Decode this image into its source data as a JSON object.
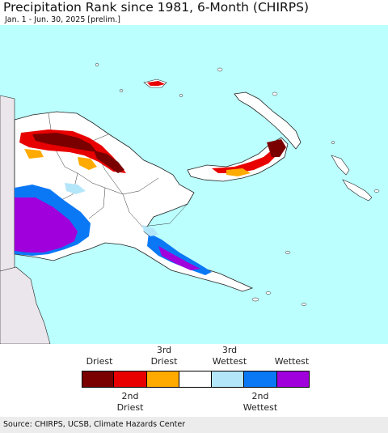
{
  "title": "Precipitation Rank since 1981, 6-Month (CHIRPS)",
  "subtitle": "Jan. 1 - Jun. 30, 2025 [prelim.]",
  "colors": {
    "ocean": "#bbffff",
    "land": "#ffffff",
    "neighbor_land": "#ebe6eb",
    "border": "#222222",
    "driest": "#7a0000",
    "second_driest": "#e80000",
    "third_driest": "#ffaa00",
    "normal": "#ffffff",
    "third_wettest": "#b4e6fa",
    "second_wettest": "#0a78f5",
    "wettest": "#a000dc"
  },
  "legend": {
    "top_labels": [
      {
        "id": "driest",
        "line1": "Driest",
        "line2": ""
      },
      {
        "id": "third-driest",
        "line1": "3rd",
        "line2": "Driest"
      },
      {
        "id": "third-wettest",
        "line1": "3rd",
        "line2": "Wettest"
      },
      {
        "id": "wettest",
        "line1": "Wettest",
        "line2": ""
      }
    ],
    "bottom_labels": [
      {
        "id": "second-driest",
        "line1": "2nd",
        "line2": "Driest"
      },
      {
        "id": "second-wettest",
        "line1": "2nd",
        "line2": "Wettest"
      }
    ],
    "categories": [
      "driest",
      "second_driest",
      "third_driest",
      "normal",
      "third_wettest",
      "second_wettest",
      "wettest"
    ]
  },
  "source": "Source: CHIRPS, UCSB, Climate Hazards Center"
}
